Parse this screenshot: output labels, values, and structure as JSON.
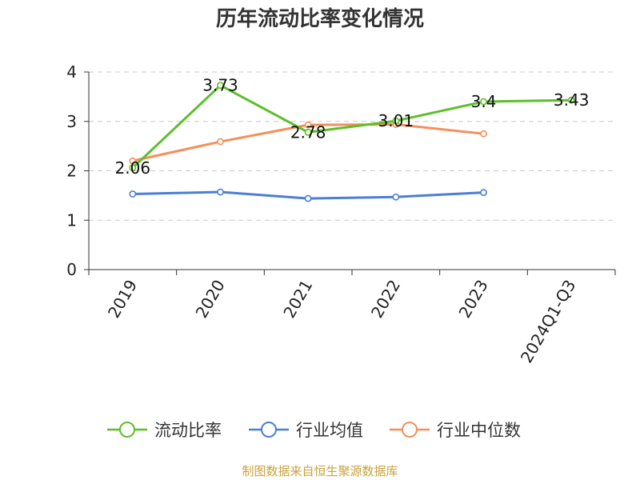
{
  "chart_data": {
    "type": "line",
    "title": "历年流动比率变化情况",
    "categories": [
      "2019",
      "2020",
      "2021",
      "2022",
      "2023",
      "2024Q1-Q3"
    ],
    "ylim": [
      0,
      4
    ],
    "yticks": [
      0,
      1,
      2,
      3,
      4
    ],
    "grid": true,
    "legend_position": "bottom",
    "series": [
      {
        "name": "流动比率",
        "color": "#5cbf2a",
        "values": [
          2.06,
          3.73,
          2.78,
          3.01,
          3.4,
          3.43
        ],
        "labels": [
          "2.06",
          "3.73",
          "2.78",
          "3.01",
          "3.4",
          "3.43"
        ]
      },
      {
        "name": "行业均值",
        "color": "#4a7fd6",
        "values": [
          1.53,
          1.57,
          1.44,
          1.47,
          1.56,
          null
        ]
      },
      {
        "name": "行业中位数",
        "color": "#f58f5a",
        "values": [
          2.2,
          2.59,
          2.93,
          2.94,
          2.75,
          null
        ]
      }
    ]
  },
  "source": "制图数据来自恒生聚源数据库"
}
